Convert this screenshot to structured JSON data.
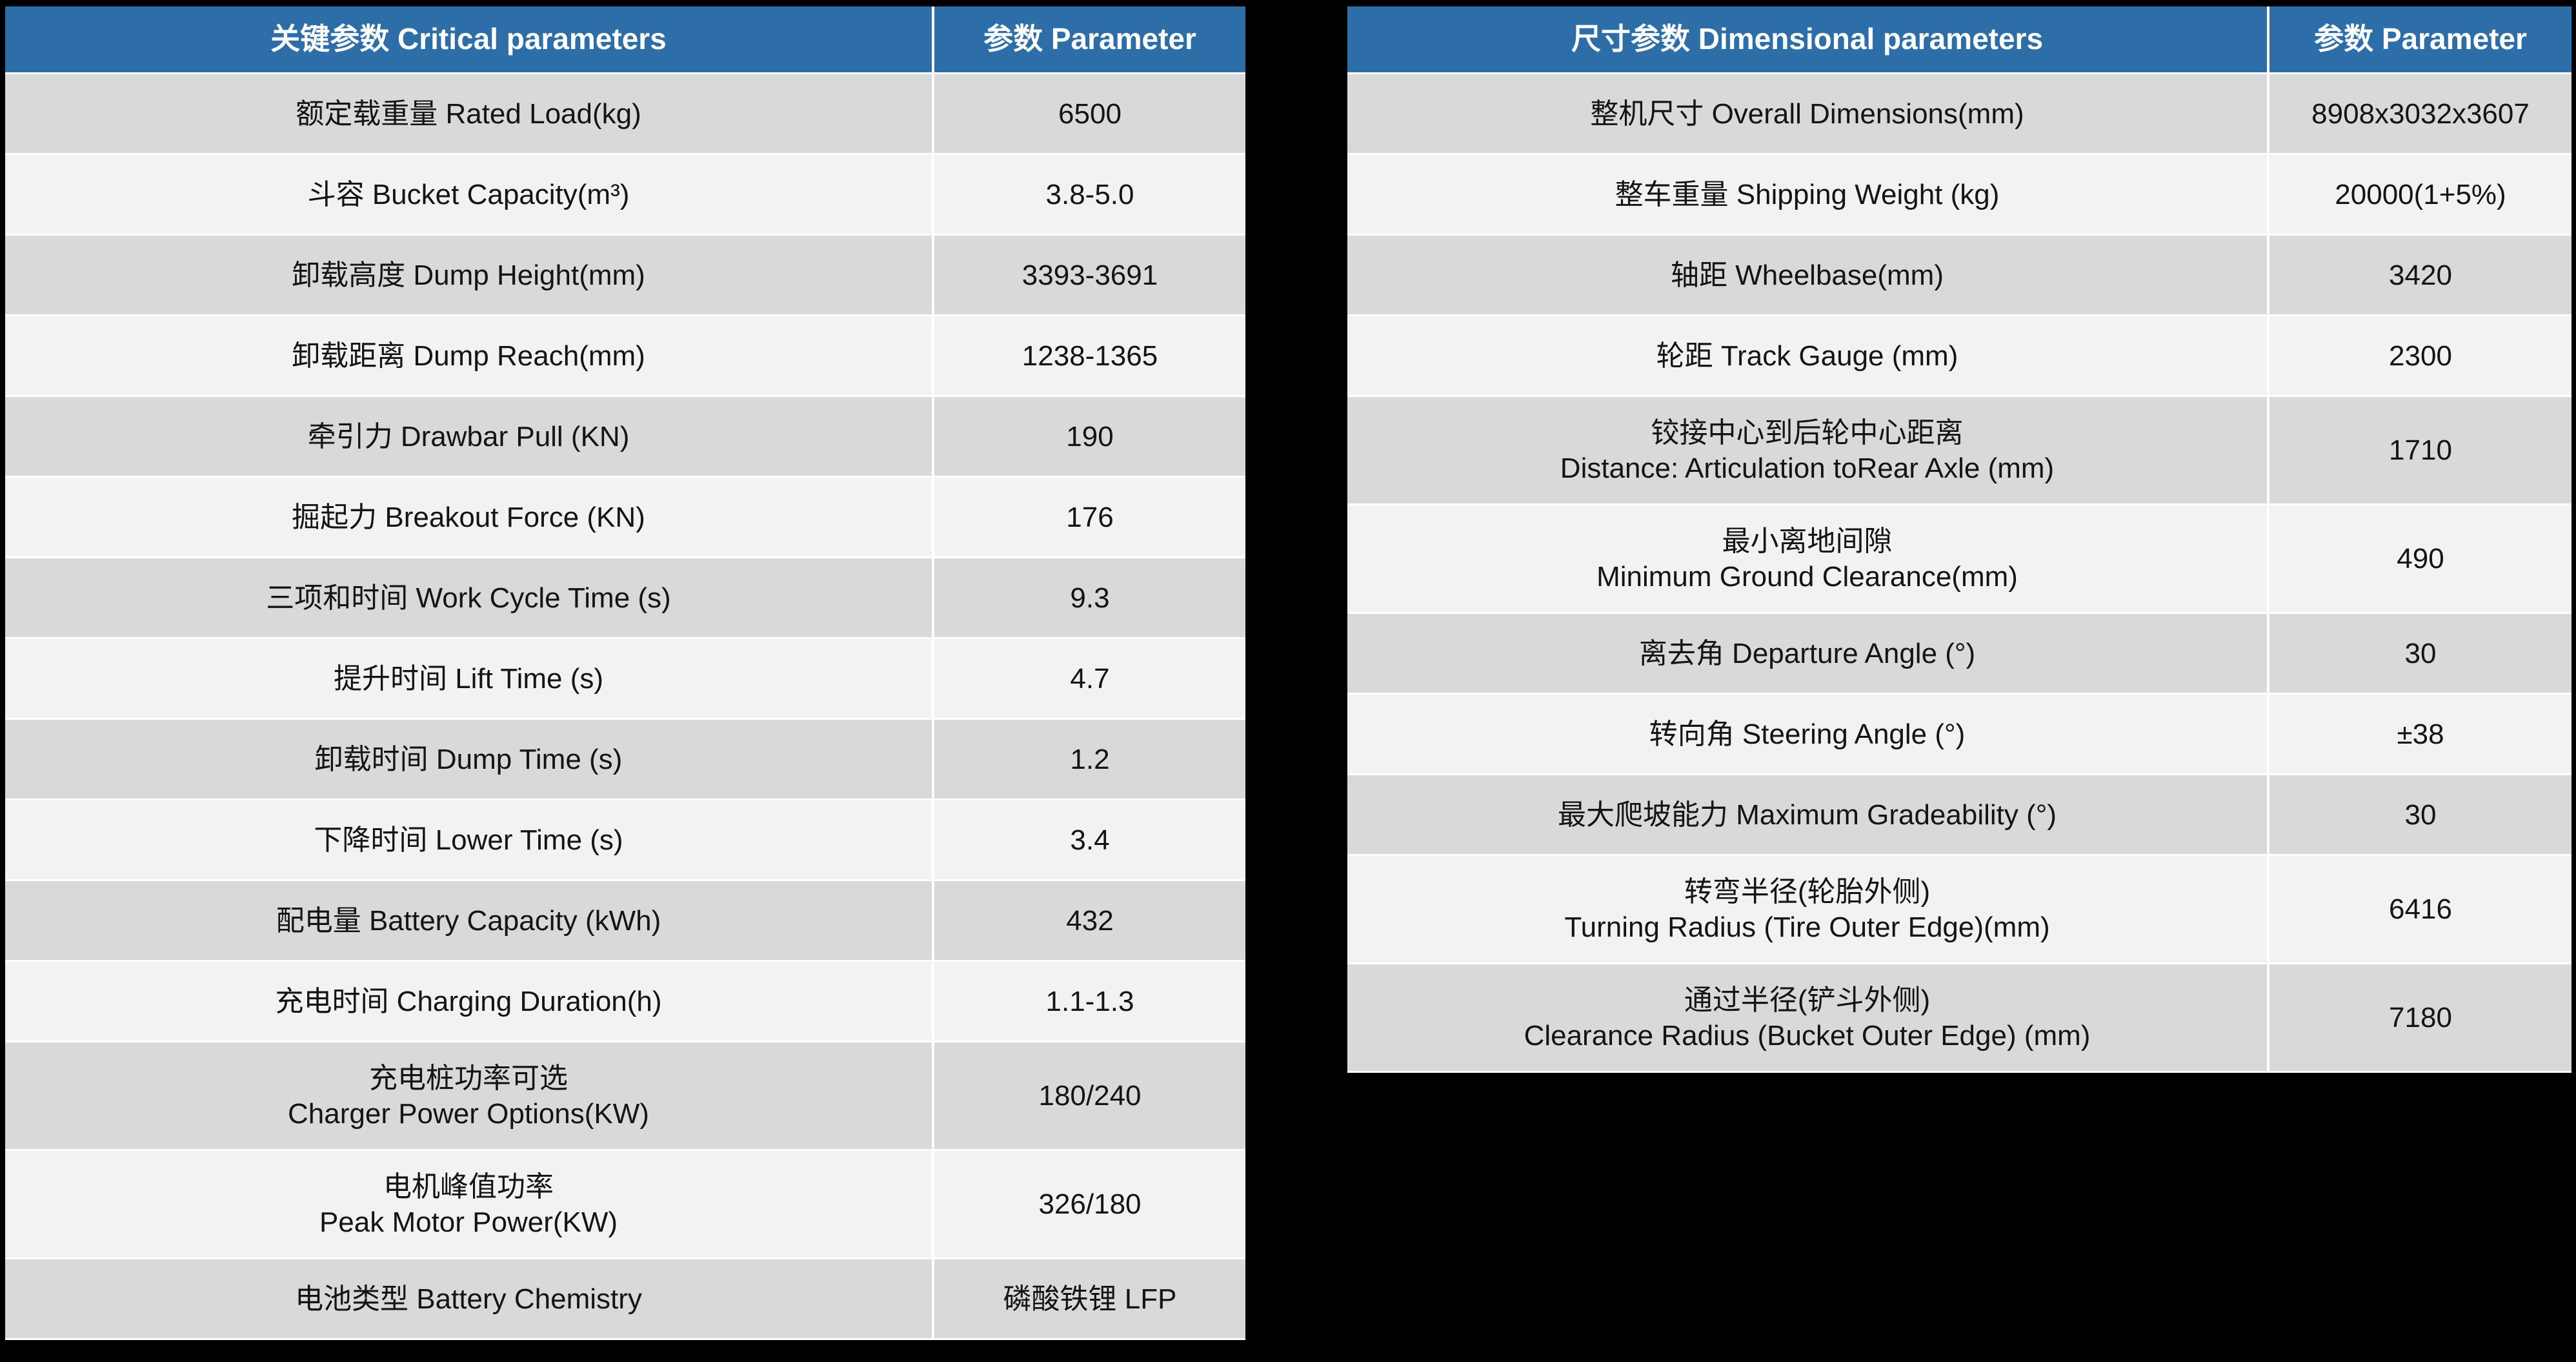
{
  "colors": {
    "header_blue": "#2d6da8",
    "row_gray": "#d9d9d9",
    "row_white": "#f2f2f2",
    "background": "#000000",
    "header_text": "#ffffff",
    "body_text": "#141414"
  },
  "critical": {
    "header": {
      "param": "关键参数 Critical parameters",
      "value": "参数 Parameter"
    },
    "rows": [
      {
        "param": "额定载重量 Rated Load(kg)",
        "value": "6500"
      },
      {
        "param": "斗容 Bucket Capacity(m³)",
        "value": "3.8-5.0"
      },
      {
        "param": "卸载高度 Dump Height(mm)",
        "value": "3393-3691"
      },
      {
        "param": "卸载距离 Dump Reach(mm)",
        "value": "1238-1365"
      },
      {
        "param": "牵引力 Drawbar Pull (KN)",
        "value": "190"
      },
      {
        "param": "掘起力 Breakout Force (KN)",
        "value": "176"
      },
      {
        "param": "三项和时间  Work Cycle Time (s)",
        "value": "9.3"
      },
      {
        "param": "提升时间 Lift Time (s)",
        "value": "4.7"
      },
      {
        "param": "卸载时间 Dump Time (s)",
        "value": "1.2"
      },
      {
        "param": "下降时间  Lower Time (s)",
        "value": "3.4"
      },
      {
        "param": "配电量 Battery Capacity (kWh)",
        "value": "432"
      },
      {
        "param": "充电时间 Charging Duration(h)",
        "value": "1.1-1.3"
      },
      {
        "param": "充电桩功率可选\nCharger Power Options(KW)",
        "value": "180/240"
      },
      {
        "param": "电机峰值功率\nPeak Motor Power(KW)",
        "value": "326/180"
      },
      {
        "param": "电池类型 Battery Chemistry",
        "value": "磷酸铁锂 LFP"
      }
    ]
  },
  "dimensional": {
    "header": {
      "param": "尺寸参数 Dimensional parameters",
      "value": "参数 Parameter"
    },
    "rows": [
      {
        "param": "整机尺寸  Overall Dimensions(mm)",
        "value": "8908x3032x3607"
      },
      {
        "param": "整车重量  Shipping Weight (kg)",
        "value": "20000(1+5%)"
      },
      {
        "param": "轴距 Wheelbase(mm)",
        "value": "3420"
      },
      {
        "param": "轮距 Track Gauge (mm)",
        "value": "2300"
      },
      {
        "param": "铰接中心到后轮中心距离\nDistance: Articulation toRear Axle (mm)",
        "value": "1710"
      },
      {
        "param": "最小离地间隙\nMinimum Ground Clearance(mm)",
        "value": "490"
      },
      {
        "param": "离去角 Departure Angle (°)",
        "value": "30"
      },
      {
        "param": "转向角 Steering Angle (°)",
        "value": "±38"
      },
      {
        "param": "最大爬坡能力 Maximum Gradeability  (°)",
        "value": "30"
      },
      {
        "param": "转弯半径(轮胎外侧)\nTurning Radius (Tire Outer Edge)(mm)",
        "value": "6416"
      },
      {
        "param": "通过半径(铲斗外侧)\nClearance Radius (Bucket Outer Edge) (mm)",
        "value": "7180"
      }
    ]
  }
}
